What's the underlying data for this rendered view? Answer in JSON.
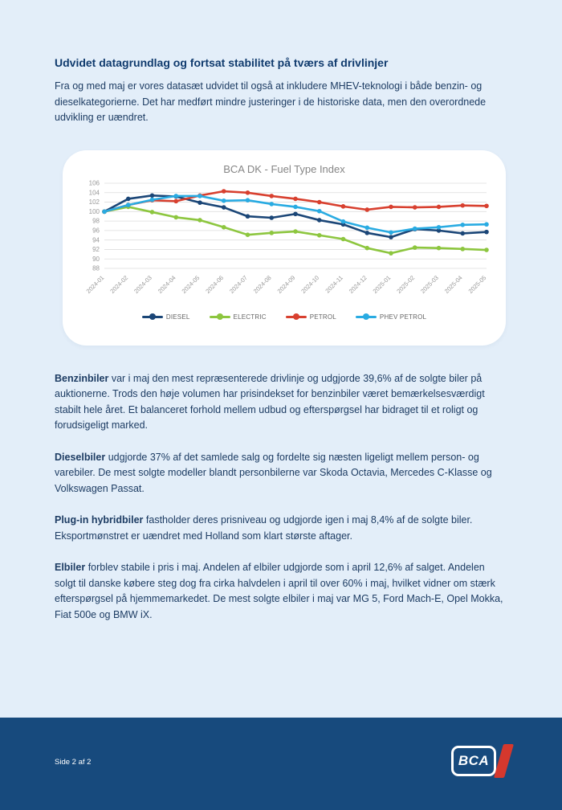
{
  "page": {
    "background": "#e3eef9",
    "accent_navy": "#0f3a6d",
    "footer_navy": "#174a7d"
  },
  "header": {
    "title": "Udvidet datagrundlag og fortsat stabilitet på tværs af drivlinjer",
    "intro": "Fra og med maj er vores datasæt udvidet til også at inkludere MHEV-teknologi i både benzin- og dieselkategorierne. Det har medført mindre justeringer i de historiske data, men den overordnede udvikling er uændret."
  },
  "chart_data": {
    "type": "line",
    "title": "BCA DK - Fuel Type Index",
    "categories": [
      "2024-01",
      "2024-02",
      "2024-03",
      "2024-04",
      "2024-05",
      "2024-06",
      "2024-07",
      "2024-08",
      "2024-09",
      "2024-10",
      "2024-11",
      "2024-12",
      "2025-01",
      "2025-02",
      "2025-03",
      "2025-04",
      "2025-05"
    ],
    "series": [
      {
        "name": "DIESEL",
        "color": "#1b4677",
        "values": [
          100,
          102.7,
          103.4,
          103.2,
          101.9,
          100.9,
          99.0,
          98.7,
          99.5,
          98.2,
          97.3,
          95.5,
          94.6,
          96.3,
          96.0,
          95.4,
          95.7
        ]
      },
      {
        "name": "ELECTRIC",
        "color": "#8dc63f",
        "values": [
          100,
          101.0,
          99.9,
          98.8,
          98.2,
          96.7,
          95.1,
          95.5,
          95.8,
          95.0,
          94.2,
          92.3,
          91.2,
          92.4,
          92.3,
          92.1,
          91.9
        ]
      },
      {
        "name": "PETROL",
        "color": "#d8402f",
        "values": [
          100,
          101.4,
          102.4,
          102.2,
          103.4,
          104.3,
          104.0,
          103.3,
          102.7,
          102.0,
          101.1,
          100.4,
          101.0,
          100.9,
          101.0,
          101.3,
          101.2
        ]
      },
      {
        "name": "PHEV PETROL",
        "color": "#29abe2",
        "values": [
          100,
          101.4,
          102.5,
          103.3,
          103.3,
          102.3,
          102.4,
          101.6,
          101.0,
          100.1,
          97.9,
          96.6,
          95.6,
          96.4,
          96.7,
          97.2,
          97.3
        ]
      }
    ],
    "ylim": [
      88,
      106
    ],
    "ytick_step": 2,
    "grid": true,
    "legend_position": "bottom",
    "axis_text_color": "#999999",
    "grid_color": "#dddddd"
  },
  "paragraphs": [
    {
      "lead": "Benzinbiler",
      "text": " var i maj den mest repræsenterede drivlinje og udgjorde 39,6% af de solgte biler på auktionerne. Trods den høje volumen har prisindekset for benzinbiler været bemærkelsesværdigt stabilt hele året. Et balanceret forhold mellem udbud og efterspørgsel har bidraget til et roligt og forudsigeligt marked."
    },
    {
      "lead": "Dieselbiler",
      "text": " udgjorde 37% af det samlede salg og fordelte sig næsten ligeligt mellem person- og varebiler. De mest solgte modeller blandt personbilerne var Skoda Octavia, Mercedes C-Klasse og Volkswagen Passat."
    },
    {
      "lead": "Plug-in hybridbiler",
      "text": " fastholder deres prisniveau og udgjorde igen i maj 8,4% af de solgte biler. Eksportmønstret er uændret med Holland som klart største aftager."
    },
    {
      "lead": "Elbiler",
      "text": " forblev stabile i pris i maj. Andelen af elbiler udgjorde som i april 12,6% af salget. Andelen solgt til danske købere steg dog fra cirka halvdelen i april til over 60% i maj, hvilket vidner om stærk efterspørgsel på hjemmemarkedet. De mest solgte elbiler i maj var MG 5, Ford Mach-E, Opel Mokka, Fiat 500e og BMW iX."
    }
  ],
  "footer": {
    "page_label": "Side 2 af 2",
    "logo_text": "BCA"
  }
}
